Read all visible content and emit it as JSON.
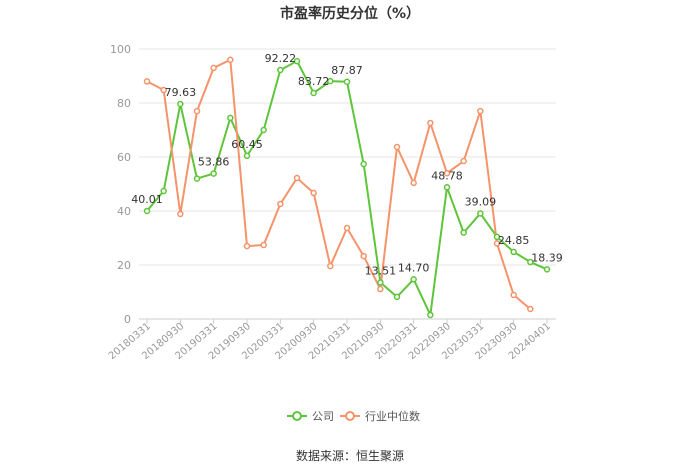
{
  "chart_data": {
    "type": "line",
    "title": "市盈率历史分位（%）",
    "categories": [
      "20180331",
      "",
      "20180930",
      "",
      "20190331",
      "",
      "20190930",
      "",
      "20200331",
      "",
      "20200930",
      "",
      "20210331",
      "",
      "20210930",
      "",
      "20220331",
      "",
      "20220930",
      "",
      "20230331",
      "",
      "20230930",
      "",
      "20240401"
    ],
    "ylim": [
      0,
      100
    ],
    "yticks": [
      0,
      20,
      40,
      60,
      80,
      100
    ],
    "grid": true,
    "legend_position": "bottom",
    "series": [
      {
        "name": "公司",
        "color": "#5ec53a",
        "values": [
          40.01,
          47.4,
          79.63,
          52.0,
          53.86,
          74.5,
          60.45,
          70.0,
          92.22,
          95.5,
          83.72,
          88.1,
          87.87,
          57.4,
          13.51,
          8.2,
          14.7,
          1.5,
          48.78,
          32.0,
          39.09,
          30.4,
          24.85,
          21.1,
          18.39
        ],
        "labels": [
          "40.01",
          null,
          "79.63",
          null,
          "53.86",
          null,
          "60.45",
          null,
          "92.22",
          null,
          "83.72",
          null,
          "87.87",
          null,
          "13.51",
          null,
          "14.70",
          null,
          "48.78",
          null,
          "39.09",
          null,
          "24.85",
          null,
          "18.39"
        ]
      },
      {
        "name": "行业中位数",
        "color": "#f5936b",
        "values": [
          88.0,
          84.8,
          38.9,
          77.0,
          93.0,
          96.0,
          27.0,
          27.4,
          42.6,
          52.2,
          46.7,
          19.6,
          33.7,
          23.3,
          11.1,
          63.7,
          50.4,
          72.6,
          54.0,
          58.5,
          77.0,
          28.0,
          8.9,
          3.7,
          null
        ]
      }
    ]
  },
  "source": "数据来源：恒生聚源"
}
